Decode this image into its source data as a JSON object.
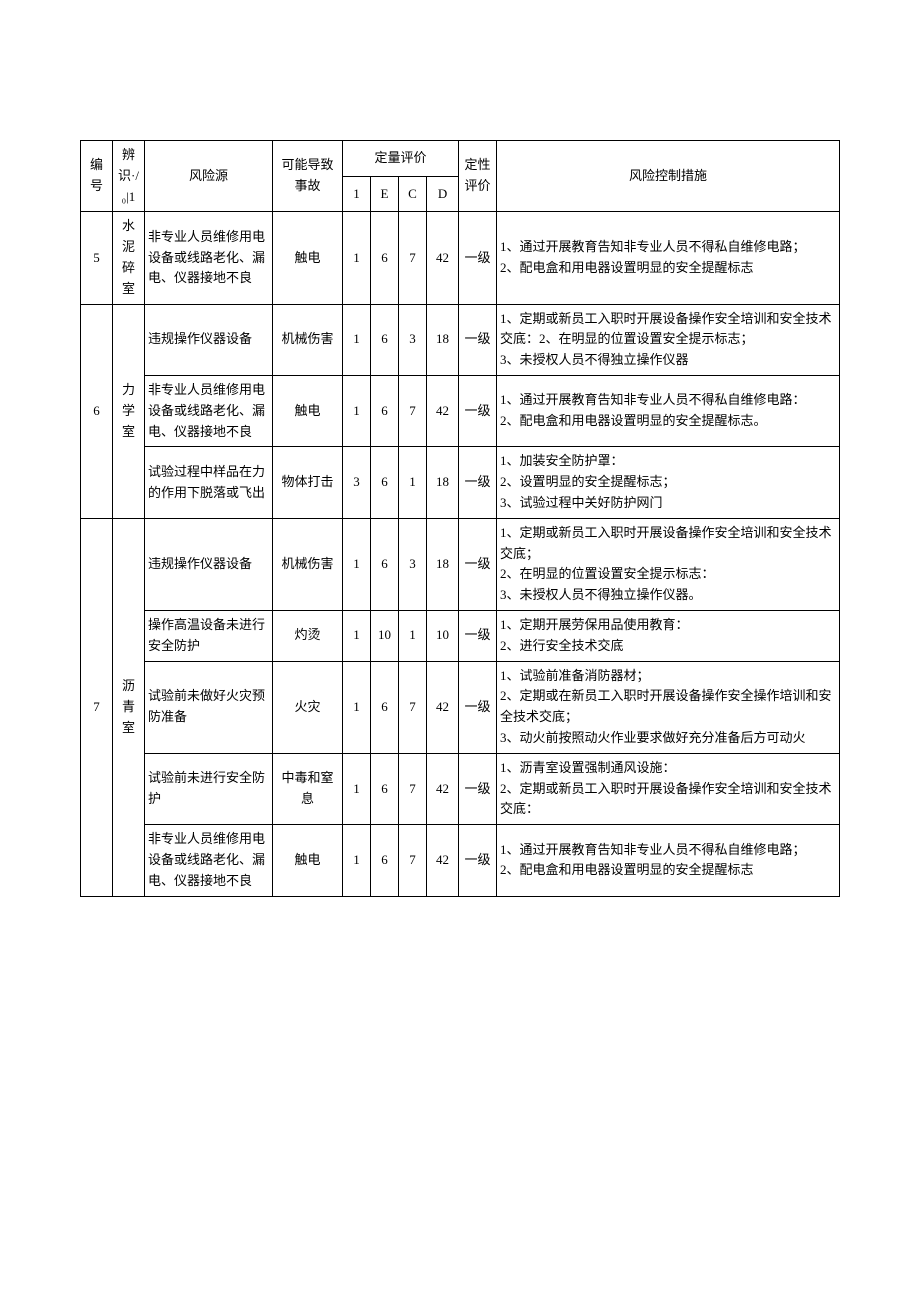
{
  "header": {
    "col_id": "编号",
    "col_room": "辨识·/₀|1",
    "col_source": "风险源",
    "col_accident": "可能导致事故",
    "col_quant": "定量评价",
    "col_qual": "定性评价",
    "col_ctrl": "风险控制措施",
    "sub_cols": [
      "1",
      "E",
      "C",
      "D"
    ]
  },
  "groups": [
    {
      "id": "5",
      "room": "水泥碎室",
      "rows": [
        {
          "source": "非专业人员维修用电设备或线路老化、漏电、仪器接地不良",
          "accident": "触电",
          "q": [
            "1",
            "6",
            "7",
            "42"
          ],
          "grade": "一级",
          "ctrl": "1、通过开展教育告知非专业人员不得私自维修电路；\n2、配电盒和用电器设置明显的安全提醒标志"
        }
      ]
    },
    {
      "id": "6",
      "room": "力学室",
      "rows": [
        {
          "source": "违规操作仪器设备",
          "accident": "机械伤害",
          "q": [
            "1",
            "6",
            "3",
            "18"
          ],
          "grade": "一级",
          "ctrl": "1、定期或新员工入职时开展设备操作安全培训和安全技术交底：2、在明显的位置设置安全提示标志；\n3、未授权人员不得独立操作仪器"
        },
        {
          "source": "非专业人员维修用电设备或线路老化、漏电、仪器接地不良",
          "accident": "触电",
          "q": [
            "1",
            "6",
            "7",
            "42"
          ],
          "grade": "一级",
          "ctrl": "1、通过开展教育告知非专业人员不得私自维修电路：\n2、配电盒和用电器设置明显的安全提醒标志。"
        },
        {
          "source": "试验过程中样品在力的作用下脱落或飞出",
          "accident": "物体打击",
          "q": [
            "3",
            "6",
            "1",
            "18"
          ],
          "grade": "一级",
          "ctrl": "1、加装安全防护罩：\n2、设置明显的安全提醒标志；\n3、试验过程中关好防护网门"
        }
      ]
    },
    {
      "id": "7",
      "room": "沥青室",
      "rows": [
        {
          "source": "违规操作仪器设备",
          "accident": "机械伤害",
          "q": [
            "1",
            "6",
            "3",
            "18"
          ],
          "grade": "一级",
          "ctrl": "1、定期或新员工入职时开展设备操作安全培训和安全技术交底；\n2、在明显的位置设置安全提示标志：\n3、未授权人员不得独立操作仪器。"
        },
        {
          "source": "操作高温设备未进行安全防护",
          "accident": "灼烫",
          "q": [
            "1",
            "10",
            "1",
            "10"
          ],
          "grade": "一级",
          "ctrl": "1、定期开展劳保用品使用教育：\n2、进行安全技术交底"
        },
        {
          "source": "试验前未做好火灾预防准备",
          "accident": "火灾",
          "q": [
            "1",
            "6",
            "7",
            "42"
          ],
          "grade": "一级",
          "ctrl": "1、试验前准备消防器材；\n2、定期或在新员工入职时开展设备操作安全操作培训和安全技术交底；\n3、动火前按照动火作业要求做好充分准备后方可动火"
        },
        {
          "source": "试验前未进行安全防护",
          "accident": "中毒和窒息",
          "q": [
            "1",
            "6",
            "7",
            "42"
          ],
          "grade": "一级",
          "ctrl": "1、沥青室设置强制通风设施：\n2、定期或新员工入职时开展设备操作安全培训和安全技术交底："
        },
        {
          "source": "非专业人员维修用电设备或线路老化、漏电、仪器接地不良",
          "accident": "触电",
          "q": [
            "1",
            "6",
            "7",
            "42"
          ],
          "grade": "一级",
          "ctrl": "1、通过开展教育告知非专业人员不得私自维修电路；\n2、配电盒和用电器设置明显的安全提醒标志"
        }
      ]
    }
  ]
}
